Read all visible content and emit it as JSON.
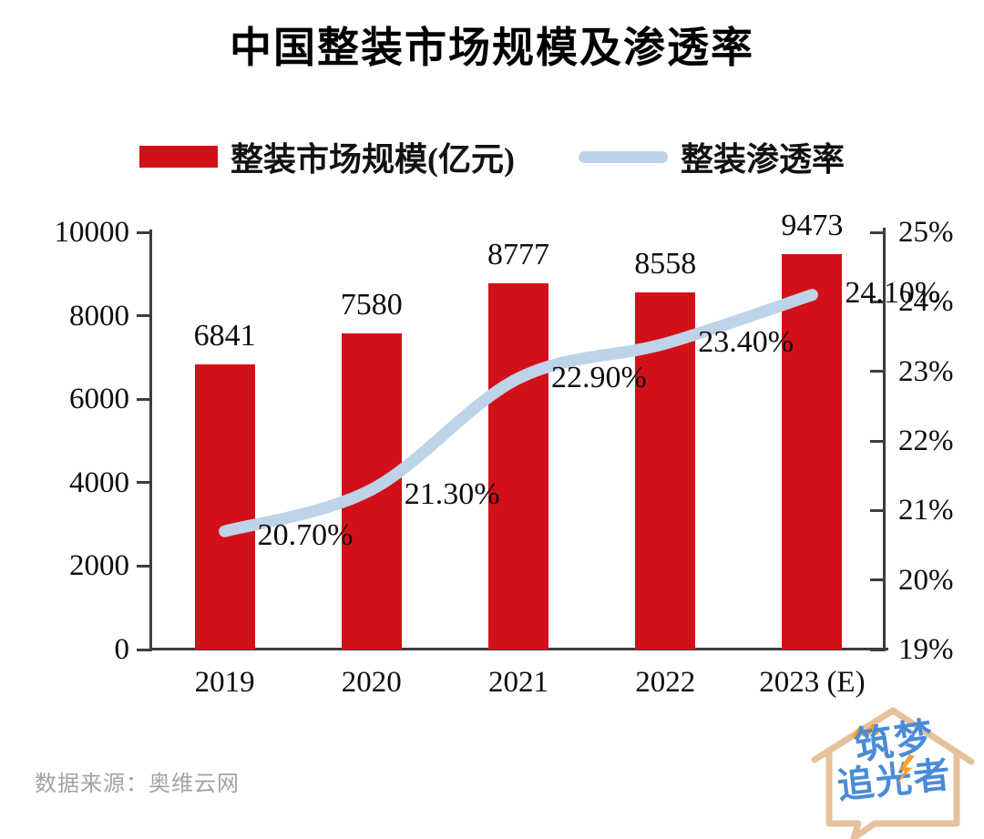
{
  "title": {
    "text": "中国整装市场规模及渗透率"
  },
  "legend": {
    "items": [
      {
        "label": "整装市场规模(亿元)",
        "color": "#d2101a",
        "marker": "bar"
      },
      {
        "label": "整装渗透率",
        "color": "#bfd3e8",
        "marker": "line"
      }
    ]
  },
  "chart_data": {
    "type": "bar",
    "title": "中国整装市场规模及渗透率",
    "categories": [
      "2019",
      "2020",
      "2021",
      "2022",
      "2023 (E)"
    ],
    "series": [
      {
        "name": "整装市场规模(亿元)",
        "type": "bar",
        "axis": "left",
        "color": "#d2101a",
        "values": [
          6841,
          7580,
          8777,
          8558,
          9473
        ],
        "labels": [
          "6841",
          "7580",
          "8777",
          "8558",
          "9473"
        ]
      },
      {
        "name": "整装渗透率",
        "type": "line",
        "axis": "right",
        "color": "#bfd3e8",
        "values": [
          20.7,
          21.3,
          22.9,
          23.4,
          24.1
        ],
        "labels": [
          "20.70%",
          "21.30%",
          "22.90%",
          "23.40%",
          "24.10%"
        ]
      }
    ],
    "left_axis": {
      "range": [
        0,
        10000
      ],
      "values": [
        0,
        2000,
        4000,
        6000,
        8000,
        10000
      ],
      "ticks": [
        "0",
        "2000",
        "4000",
        "6000",
        "8000",
        "10000"
      ]
    },
    "right_axis": {
      "range": [
        19,
        25
      ],
      "values": [
        19,
        20,
        21,
        22,
        23,
        24,
        25
      ],
      "ticks": [
        "19%",
        "20%",
        "21%",
        "22%",
        "23%",
        "24%",
        "25%"
      ]
    },
    "grid": false,
    "legend_position": "top"
  },
  "source": {
    "text": "数据来源：奥维云网"
  },
  "watermark": {
    "line1": "筑梦",
    "line2": "追光者"
  },
  "colors": {
    "bar": "#d2101a",
    "line": "#bfd3e8",
    "axis": "#3d3d3d",
    "text": "#0d0d0d",
    "source": "#a3a3a3",
    "logo_outline": "#e6c19b",
    "logo_text": "#4a8bd8",
    "logo_accent": "#f6a028"
  }
}
